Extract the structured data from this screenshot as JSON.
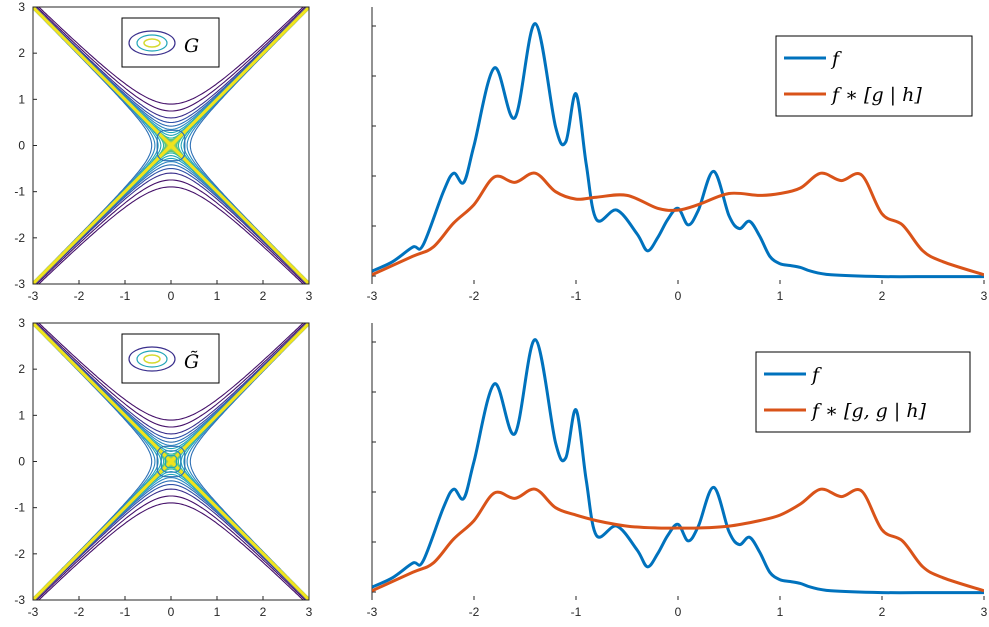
{
  "colors": {
    "f": "#0072BD",
    "conv": "#D95319",
    "axis": "#262626"
  },
  "chart_data": [
    {
      "type": "contour",
      "panel": "top-left",
      "legend": [
        "G"
      ],
      "legend_icon": "ellipse-contour-icon",
      "xlim": [
        -3,
        3
      ],
      "ylim": [
        -3,
        3
      ],
      "xticks": [
        "-3",
        "-2",
        "-1",
        "0",
        "1",
        "2",
        "3"
      ],
      "yticks": [
        "3",
        "2",
        "1",
        "0",
        "-1",
        "-2",
        "-3"
      ],
      "center_levels": 1
    },
    {
      "type": "line",
      "panel": "top-right",
      "xlim": [
        -3,
        3
      ],
      "xticks": [
        "-3",
        "-2",
        "-1",
        "0",
        "1",
        "2",
        "3"
      ],
      "legend_position": "top-right",
      "series": [
        {
          "name": "f",
          "x": [
            -3,
            -2.8,
            -2.6,
            -2.5,
            -2.3,
            -2.2,
            -2.1,
            -2,
            -1.8,
            -1.6,
            -1.4,
            -1.2,
            -1.1,
            -1,
            -0.9,
            -0.8,
            -0.6,
            -0.4,
            -0.3,
            -0.2,
            -0.1,
            0,
            0.1,
            0.2,
            0.35,
            0.5,
            0.6,
            0.7,
            0.8,
            0.9,
            1,
            1.1,
            1.2,
            1.3,
            1.5,
            2,
            2.5,
            3
          ],
          "y": [
            0.02,
            0.07,
            0.15,
            0.16,
            0.45,
            0.55,
            0.5,
            0.7,
            1.12,
            0.85,
            1.36,
            0.8,
            0.72,
            0.98,
            0.6,
            0.3,
            0.35,
            0.22,
            0.13,
            0.2,
            0.3,
            0.36,
            0.27,
            0.35,
            0.56,
            0.32,
            0.25,
            0.29,
            0.21,
            0.1,
            0.06,
            0.05,
            0.04,
            0.02,
            0,
            -0.01,
            -0.01,
            -0.01
          ]
        },
        {
          "name": "f ∗ [g | h]",
          "x": [
            -3,
            -2.6,
            -2.4,
            -2.2,
            -2,
            -1.8,
            -1.6,
            -1.4,
            -1.2,
            -1,
            -0.8,
            -0.5,
            -0.2,
            0,
            0.2,
            0.5,
            0.8,
            1,
            1.2,
            1.4,
            1.6,
            1.8,
            2,
            2.2,
            2.4,
            2.6,
            3
          ],
          "y": [
            0,
            0.1,
            0.15,
            0.28,
            0.38,
            0.53,
            0.5,
            0.55,
            0.45,
            0.41,
            0.42,
            0.43,
            0.36,
            0.35,
            0.38,
            0.44,
            0.43,
            0.44,
            0.47,
            0.55,
            0.51,
            0.54,
            0.33,
            0.27,
            0.13,
            0.07,
            0
          ]
        }
      ]
    },
    {
      "type": "contour",
      "panel": "bottom-left",
      "legend": [
        "G̃"
      ],
      "legend_icon": "ellipse-contour-icon",
      "xlim": [
        -3,
        3
      ],
      "ylim": [
        -3,
        3
      ],
      "xticks": [
        "-3",
        "-2",
        "-1",
        "0",
        "1",
        "2",
        "3"
      ],
      "yticks": [
        "3",
        "2",
        "1",
        "0",
        "-1",
        "-2",
        "-3"
      ],
      "center_levels": 3
    },
    {
      "type": "line",
      "panel": "bottom-right",
      "xlim": [
        -3,
        3
      ],
      "xticks": [
        "-3",
        "-2",
        "-1",
        "0",
        "1",
        "2",
        "3"
      ],
      "legend_position": "top-right",
      "series": [
        {
          "name": "f",
          "x": [
            -3,
            -2.8,
            -2.6,
            -2.5,
            -2.3,
            -2.2,
            -2.1,
            -2,
            -1.8,
            -1.6,
            -1.4,
            -1.2,
            -1.1,
            -1,
            -0.9,
            -0.8,
            -0.6,
            -0.4,
            -0.3,
            -0.2,
            -0.1,
            0,
            0.1,
            0.2,
            0.35,
            0.5,
            0.6,
            0.7,
            0.8,
            0.9,
            1,
            1.1,
            1.2,
            1.3,
            1.5,
            2,
            2.5,
            3
          ],
          "y": [
            0.02,
            0.07,
            0.15,
            0.16,
            0.45,
            0.55,
            0.5,
            0.7,
            1.12,
            0.85,
            1.36,
            0.8,
            0.72,
            0.98,
            0.6,
            0.3,
            0.35,
            0.22,
            0.13,
            0.2,
            0.3,
            0.36,
            0.27,
            0.35,
            0.56,
            0.32,
            0.25,
            0.29,
            0.21,
            0.1,
            0.06,
            0.05,
            0.04,
            0.02,
            0,
            -0.01,
            -0.01,
            -0.01
          ]
        },
        {
          "name": "f ∗ [g, g | h]",
          "x": [
            -3,
            -2.6,
            -2.4,
            -2.2,
            -2,
            -1.8,
            -1.6,
            -1.4,
            -1.2,
            -1,
            -0.8,
            -0.5,
            -0.2,
            0,
            0.2,
            0.5,
            0.8,
            1,
            1.2,
            1.4,
            1.6,
            1.8,
            2,
            2.2,
            2.4,
            2.6,
            3
          ],
          "y": [
            0,
            0.1,
            0.15,
            0.28,
            0.38,
            0.53,
            0.5,
            0.55,
            0.45,
            0.41,
            0.38,
            0.35,
            0.34,
            0.34,
            0.34,
            0.35,
            0.38,
            0.41,
            0.47,
            0.55,
            0.51,
            0.54,
            0.33,
            0.27,
            0.13,
            0.07,
            0
          ]
        }
      ]
    }
  ]
}
